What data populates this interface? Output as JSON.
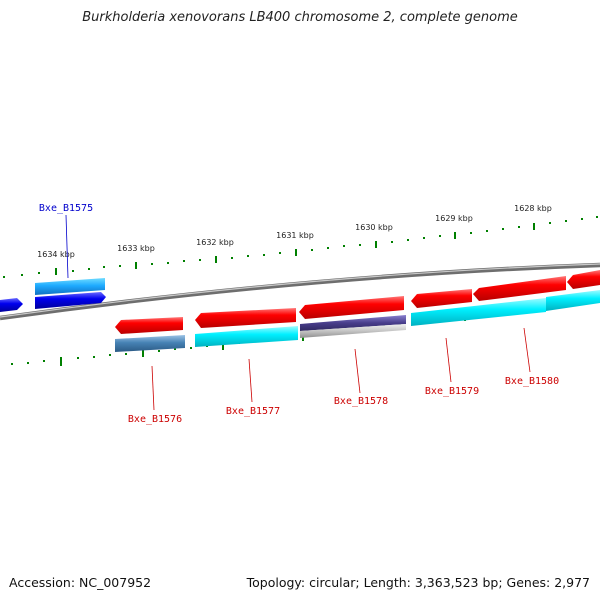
{
  "title": "Burkholderia xenovorans LB400 chromosome 2, complete genome",
  "footer": {
    "accession": "Accession: NC_007952",
    "summary": "Topology: circular; Length: 3,363,523 bp; Genes: 2,977"
  },
  "ruler": {
    "ticks": [
      "1634 kbp",
      "1633 kbp",
      "1632 kbp",
      "1631 kbp",
      "1630 kbp",
      "1629 kbp",
      "1628 kbp"
    ]
  },
  "gene_labels": [
    {
      "id": "Bxe_B1575",
      "color": "#0000cc"
    },
    {
      "id": "Bxe_B1576",
      "color": "#cc0000"
    },
    {
      "id": "Bxe_B1577",
      "color": "#cc0000"
    },
    {
      "id": "Bxe_B1578",
      "color": "#cc0000"
    },
    {
      "id": "Bxe_B1579",
      "color": "#cc0000"
    },
    {
      "id": "Bxe_B1580",
      "color": "#cc0000"
    }
  ],
  "colors": {
    "backbone": "#808080",
    "forward_strand_gene": "#0000ee",
    "reverse_strand_gene": "#ee0000",
    "cog_light_blue": "#1e90ff",
    "cog_cyan": "#00e5ee",
    "cog_steel_blue": "#4682b4",
    "cog_dark_slate": "#483d8b",
    "cog_silver": "#bebebe",
    "tick_marks": "#008000"
  }
}
